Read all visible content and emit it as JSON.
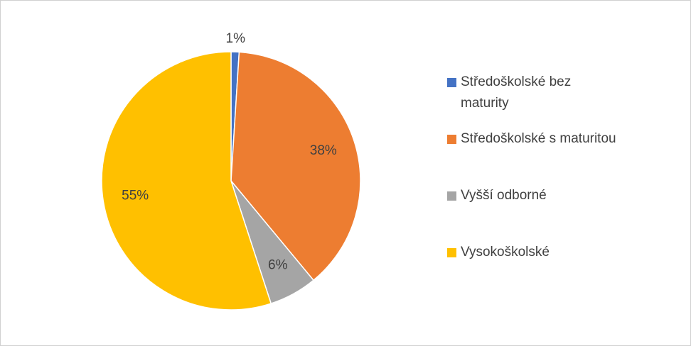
{
  "chart_data": {
    "type": "pie",
    "categories": [
      "Středoškolské bez maturity",
      "Středoškolské s maturitou",
      "Vyšší odborné",
      "Vysokoškolské"
    ],
    "values": [
      1,
      38,
      6,
      55
    ],
    "value_labels": [
      "1%",
      "38%",
      "6%",
      "55%"
    ],
    "colors": [
      "#4472c4",
      "#ed7d31",
      "#a5a5a5",
      "#ffc000"
    ],
    "legend": "right"
  }
}
